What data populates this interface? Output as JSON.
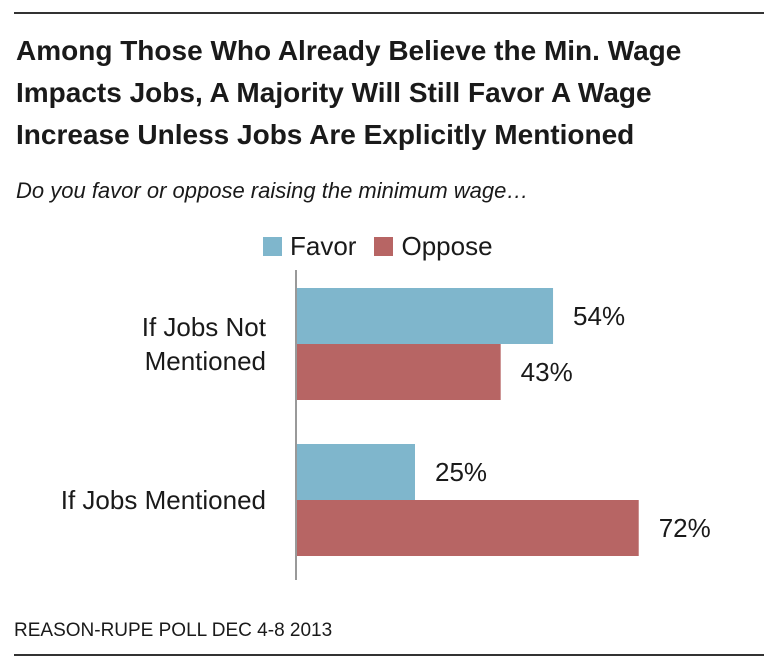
{
  "header": {
    "title_lines": [
      "Among Those Who Already Believe the Min. Wage",
      "Impacts Jobs, A Majority Will Still Favor A Wage",
      "Increase Unless Jobs Are Explicitly Mentioned"
    ],
    "subtitle": "Do you favor or oppose raising the minimum wage…"
  },
  "legend": [
    {
      "label": "Favor",
      "color": "#7fb6cc"
    },
    {
      "label": "Oppose",
      "color": "#b76564"
    }
  ],
  "chart_data": {
    "type": "bar",
    "orientation": "horizontal",
    "categories": [
      [
        "If Jobs Not",
        "Mentioned"
      ],
      [
        "If Jobs Mentioned"
      ]
    ],
    "series": [
      {
        "name": "Favor",
        "values": [
          54,
          25
        ],
        "labels": [
          "54%",
          "25%"
        ],
        "color": "#7fb6cc"
      },
      {
        "name": "Oppose",
        "values": [
          43,
          72
        ],
        "labels": [
          "43%",
          "72%"
        ],
        "color": "#b76564"
      }
    ],
    "xlim": [
      0,
      100
    ],
    "legend_position": "top",
    "grid": false
  },
  "footer": {
    "source": "REASON-RUPE POLL DEC 4-8 2013"
  }
}
